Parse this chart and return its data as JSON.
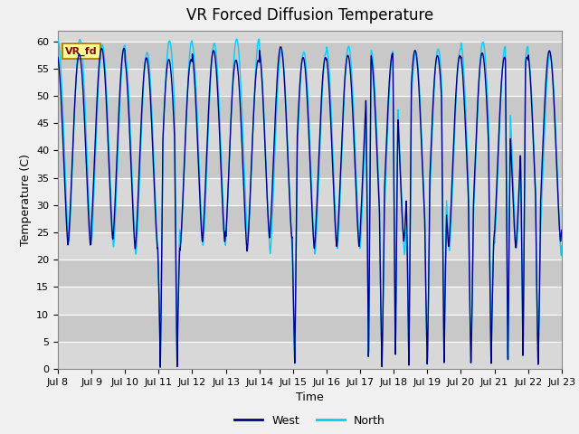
{
  "title": "VR Forced Diffusion Temperature",
  "xlabel": "Time",
  "ylabel": "Temperature (C)",
  "ylim": [
    0,
    62
  ],
  "x_tick_labels": [
    "Jul 8",
    "Jul 9",
    "Jul 10",
    "Jul 11",
    "Jul 12",
    "Jul 13",
    "Jul 14",
    "Jul 15",
    "Jul 16",
    "Jul 17",
    "Jul 18",
    "Jul 19",
    "Jul 20",
    "Jul 21",
    "Jul 22",
    "Jul 23"
  ],
  "west_color": "#00008B",
  "north_color": "#00CFFF",
  "label_text": "VR_fd",
  "label_bg": "#FFFF99",
  "label_border": "#B8860B",
  "label_text_color": "#8B0000",
  "legend_west": "West",
  "legend_north": "North",
  "plot_bg_color": "#D8D8D8",
  "fig_bg_color": "#F0F0F0",
  "white_band_color": "#E8E8E8",
  "title_fontsize": 12,
  "axis_label_fontsize": 9,
  "tick_fontsize": 8,
  "y_ticks": [
    0,
    5,
    10,
    15,
    20,
    25,
    30,
    35,
    40,
    45,
    50,
    55,
    60
  ],
  "n_days": 15,
  "pts_per_hour": 6
}
